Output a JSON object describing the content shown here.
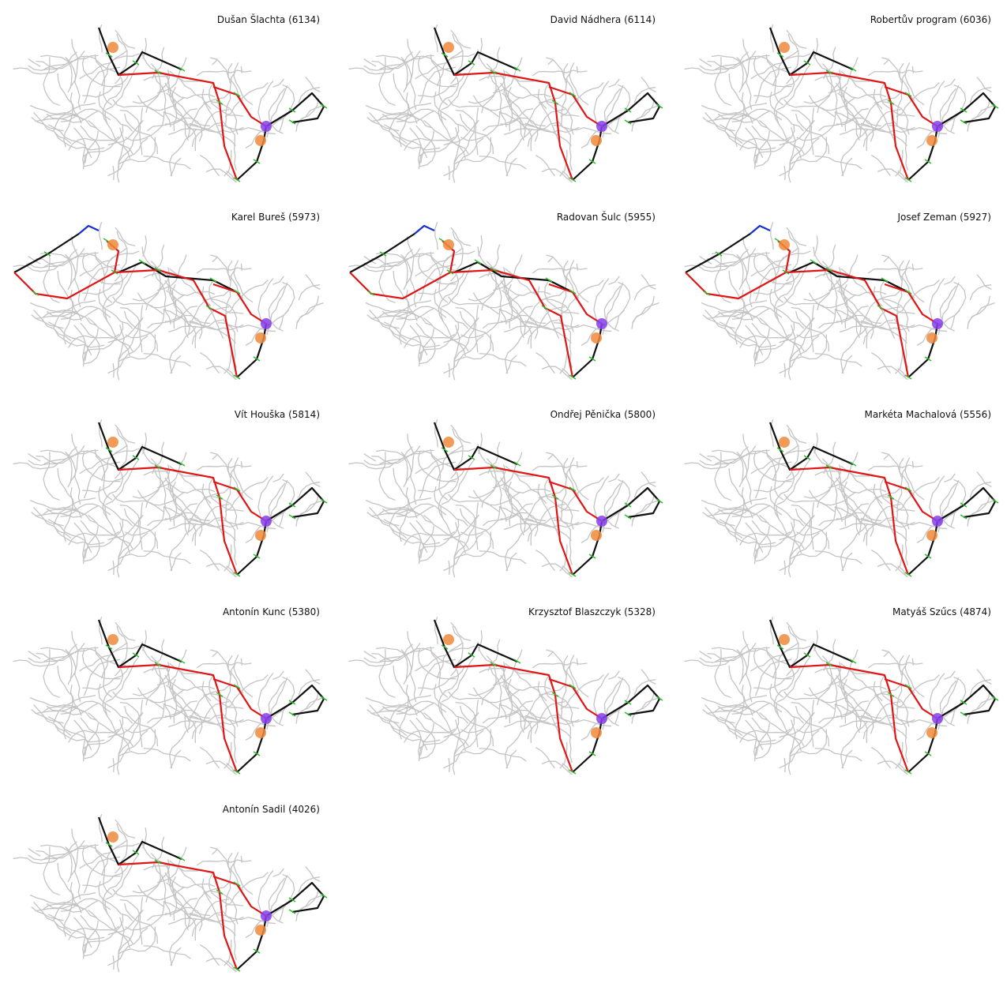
{
  "panels": [
    {
      "title": "Dušan Šlachta (6134)"
    },
    {
      "title": "David Nádhera (6114)"
    },
    {
      "title": "Robertův program (6036)"
    },
    {
      "title": "Karel Bureš (5973)"
    },
    {
      "title": "Radovan Šulc (5955)"
    },
    {
      "title": "Josef Zeman (5927)"
    },
    {
      "title": "Vít Houška (5814)"
    },
    {
      "title": "Ondřej Pěnička (5800)"
    },
    {
      "title": "Markéta Machalová (5556)"
    },
    {
      "title": "Antonín Kunc (5380)"
    },
    {
      "title": "Krzysztof Blaszczyk (5328)"
    },
    {
      "title": "Matyáš Szűcs (4874)"
    },
    {
      "title": "Antonín Sadil (4026)"
    }
  ]
}
